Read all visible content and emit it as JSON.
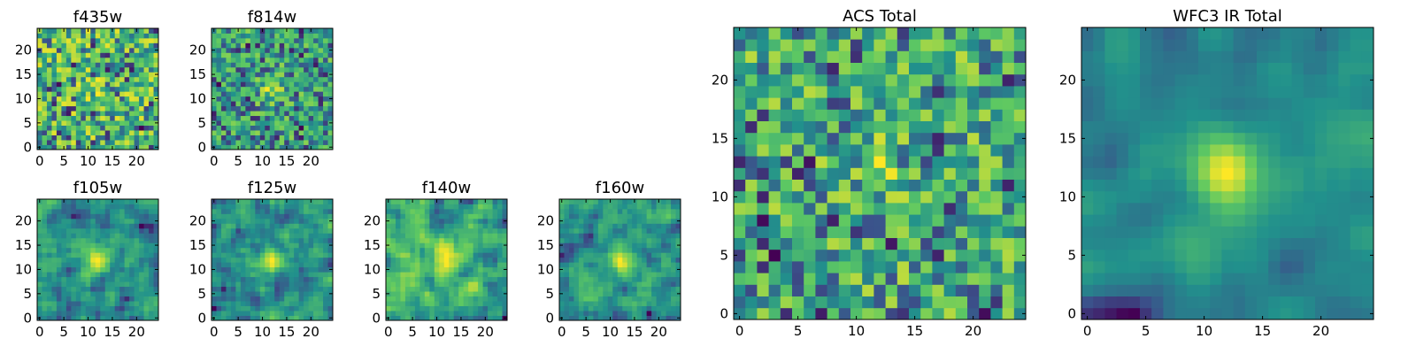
{
  "figure": {
    "description_free": true
  },
  "chart_data": [
    {
      "id": "f435w",
      "type": "heatmap",
      "title": "f435w",
      "grid": [
        25,
        25
      ],
      "seed": 11,
      "smooth": 0,
      "blob": 0.15,
      "xticks": [
        "0",
        "5",
        "10",
        "15",
        "20"
      ],
      "yticks": [
        "0",
        "5",
        "10",
        "15",
        "20"
      ],
      "xlim": [
        0,
        25
      ],
      "ylim": [
        0,
        25
      ]
    },
    {
      "id": "f814w",
      "type": "heatmap",
      "title": "f814w",
      "grid": [
        25,
        25
      ],
      "seed": 23,
      "smooth": 0,
      "blob": 0.55,
      "xticks": [
        "0",
        "5",
        "10",
        "15",
        "20"
      ],
      "yticks": [
        "0",
        "5",
        "10",
        "15",
        "20"
      ],
      "xlim": [
        0,
        25
      ],
      "ylim": [
        0,
        25
      ]
    },
    {
      "id": "f105w",
      "type": "heatmap",
      "title": "f105w",
      "grid": [
        25,
        25
      ],
      "seed": 37,
      "smooth": 1,
      "blob": 0.6,
      "xticks": [
        "0",
        "5",
        "10",
        "15",
        "20"
      ],
      "yticks": [
        "0",
        "5",
        "10",
        "15",
        "20"
      ],
      "xlim": [
        0,
        25
      ],
      "ylim": [
        0,
        25
      ]
    },
    {
      "id": "f125w",
      "type": "heatmap",
      "title": "f125w",
      "grid": [
        25,
        25
      ],
      "seed": 41,
      "smooth": 1,
      "blob": 0.5,
      "xticks": [
        "0",
        "5",
        "10",
        "15",
        "20"
      ],
      "yticks": [
        "0",
        "5",
        "10",
        "15",
        "20"
      ],
      "xlim": [
        0,
        25
      ],
      "ylim": [
        0,
        25
      ]
    },
    {
      "id": "f140w",
      "type": "heatmap",
      "title": "f140w",
      "grid": [
        25,
        25
      ],
      "seed": 53,
      "smooth": 1,
      "blob": 0.45,
      "xticks": [
        "0",
        "5",
        "10",
        "15",
        "20"
      ],
      "yticks": [
        "0",
        "5",
        "10",
        "15",
        "20"
      ],
      "xlim": [
        0,
        25
      ],
      "ylim": [
        0,
        25
      ]
    },
    {
      "id": "f160w",
      "type": "heatmap",
      "title": "f160w",
      "grid": [
        25,
        25
      ],
      "seed": 67,
      "smooth": 1,
      "blob": 0.45,
      "xticks": [
        "0",
        "5",
        "10",
        "15",
        "20"
      ],
      "yticks": [
        "0",
        "5",
        "10",
        "15",
        "20"
      ],
      "xlim": [
        0,
        25
      ],
      "ylim": [
        0,
        25
      ]
    },
    {
      "id": "acs-total",
      "type": "heatmap",
      "title": "ACS Total",
      "grid": [
        25,
        25
      ],
      "seed": 79,
      "smooth": 0,
      "blob": 0.25,
      "xticks": [
        "0",
        "5",
        "10",
        "15",
        "20"
      ],
      "yticks": [
        "0",
        "5",
        "10",
        "15",
        "20"
      ],
      "xlim": [
        0,
        25
      ],
      "ylim": [
        0,
        25
      ]
    },
    {
      "id": "wfc3-ir-total",
      "type": "heatmap",
      "title": "WFC3 IR Total",
      "grid": [
        25,
        25
      ],
      "seed": 97,
      "smooth": 2,
      "blob": 0.9,
      "xticks": [
        "0",
        "5",
        "10",
        "15",
        "20"
      ],
      "yticks": [
        "0",
        "5",
        "10",
        "15",
        "20"
      ],
      "xlim": [
        0,
        25
      ],
      "ylim": [
        0,
        25
      ]
    }
  ],
  "colormap": [
    "#440154",
    "#3b528b",
    "#21918c",
    "#5ec962",
    "#fde725"
  ]
}
